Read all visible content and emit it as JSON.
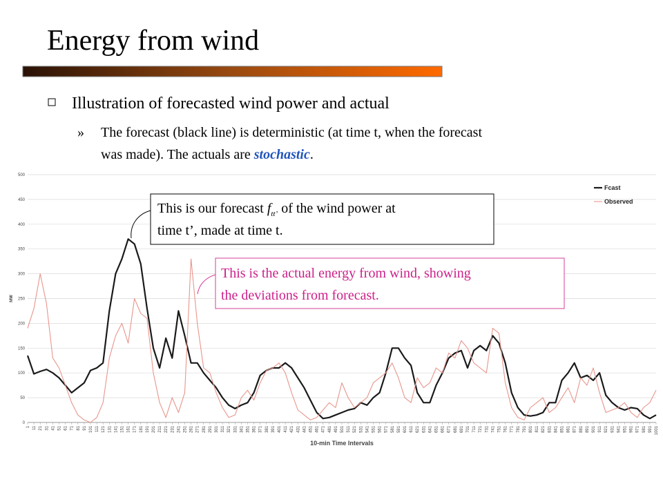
{
  "slide": {
    "title": "Energy from wind",
    "bullet": "Illustration of forecasted wind power and actual",
    "sub_bullet": [
      "The forecast (black line) is deterministic (at time t, when the forecast",
      "was made).  The actuals are ",
      "stochastic",
      "."
    ]
  },
  "chart_data": {
    "type": "line",
    "ylabel": "MW",
    "xlabel": "10-min Time Intervals",
    "x": [
      1,
      11,
      21,
      31,
      41,
      51,
      61,
      71,
      81,
      91,
      101,
      111,
      121,
      131,
      141,
      151,
      161,
      171,
      181,
      191,
      201,
      211,
      221,
      231,
      241,
      251,
      261,
      271,
      281,
      291,
      301,
      311,
      321,
      331,
      341,
      351,
      361,
      371,
      381,
      391,
      401,
      411,
      421,
      431,
      441,
      451,
      461,
      471,
      481,
      491,
      501,
      511,
      521,
      531,
      541,
      551,
      561,
      571,
      581,
      591,
      601,
      611,
      621,
      631,
      641,
      651,
      661,
      671,
      681,
      691,
      701,
      711,
      721,
      731,
      741,
      751,
      761,
      771,
      781,
      791,
      801,
      811,
      821,
      831,
      841,
      851,
      861,
      871,
      881,
      891,
      901,
      911,
      921,
      931,
      941,
      951,
      961,
      971,
      981,
      991,
      1001
    ],
    "xticks": [
      1,
      11,
      21,
      31,
      41,
      51,
      61,
      71,
      81,
      91,
      101,
      111,
      121,
      131,
      141,
      151,
      161,
      171,
      181,
      191,
      201,
      211,
      221,
      231,
      241,
      251,
      261,
      271,
      281,
      291,
      301,
      311,
      321,
      331,
      341,
      351,
      361,
      371,
      381,
      391,
      401,
      411,
      421,
      431,
      441,
      451,
      461,
      471,
      481,
      491,
      501,
      511,
      521,
      531,
      541,
      551,
      561,
      571,
      581,
      591,
      601,
      611,
      621,
      631,
      641,
      651,
      661,
      671,
      681,
      691,
      701,
      711,
      721,
      731,
      741,
      751,
      761,
      771,
      781,
      791,
      801,
      811,
      821,
      831,
      841,
      851,
      861,
      871,
      881,
      891,
      901,
      911,
      921,
      931,
      941,
      951,
      961,
      971,
      981,
      991,
      1001
    ],
    "xlim": [
      1,
      1001
    ],
    "ylim": [
      0,
      500
    ],
    "yticks": [
      0,
      50,
      100,
      150,
      200,
      250,
      300,
      350,
      400,
      450,
      500
    ],
    "grid": true,
    "legend": "top-right",
    "series": [
      {
        "name": "Fcast",
        "color": "#1a1a1a",
        "width": 2.2,
        "values": [
          135,
          98,
          103,
          107,
          100,
          90,
          75,
          60,
          70,
          80,
          105,
          110,
          120,
          225,
          300,
          330,
          370,
          360,
          320,
          230,
          150,
          110,
          170,
          130,
          225,
          175,
          120,
          120,
          100,
          85,
          70,
          50,
          35,
          28,
          35,
          40,
          60,
          95,
          105,
          110,
          110,
          120,
          110,
          90,
          70,
          45,
          20,
          8,
          10,
          15,
          20,
          25,
          28,
          40,
          35,
          50,
          60,
          100,
          150,
          150,
          130,
          115,
          60,
          40,
          40,
          75,
          100,
          130,
          140,
          145,
          110,
          145,
          155,
          145,
          175,
          160,
          120,
          60,
          30,
          15,
          13,
          15,
          20,
          40,
          40,
          85,
          100,
          120,
          90,
          95,
          85,
          100,
          55,
          40,
          30,
          25,
          30,
          28,
          15,
          8,
          15
        ]
      },
      {
        "name": "Observed",
        "color": "#e8958c",
        "width": 1.1,
        "values": [
          190,
          230,
          300,
          240,
          130,
          110,
          75,
          40,
          15,
          5,
          0,
          10,
          40,
          130,
          175,
          200,
          160,
          250,
          220,
          210,
          100,
          40,
          10,
          50,
          20,
          60,
          330,
          200,
          110,
          100,
          60,
          30,
          10,
          15,
          50,
          65,
          45,
          80,
          105,
          110,
          120,
          100,
          60,
          25,
          15,
          5,
          10,
          25,
          40,
          30,
          80,
          50,
          30,
          40,
          50,
          80,
          90,
          100,
          120,
          90,
          50,
          40,
          90,
          70,
          80,
          110,
          100,
          140,
          130,
          165,
          150,
          120,
          110,
          100,
          190,
          180,
          80,
          30,
          10,
          5,
          30,
          40,
          50,
          20,
          30,
          50,
          70,
          40,
          90,
          75,
          110,
          60,
          20,
          25,
          30,
          40,
          20,
          10,
          30,
          40,
          65
        ]
      }
    ],
    "annotations": [
      {
        "text": [
          "This is our forecast ",
          "f",
          "tt’",
          " of the wind power at",
          "time t’, made at time t."
        ],
        "points_to": "Fcast"
      },
      {
        "text": [
          "This is the actual energy from wind, showing",
          "the deviations from forecast."
        ],
        "points_to": "Observed"
      }
    ]
  }
}
